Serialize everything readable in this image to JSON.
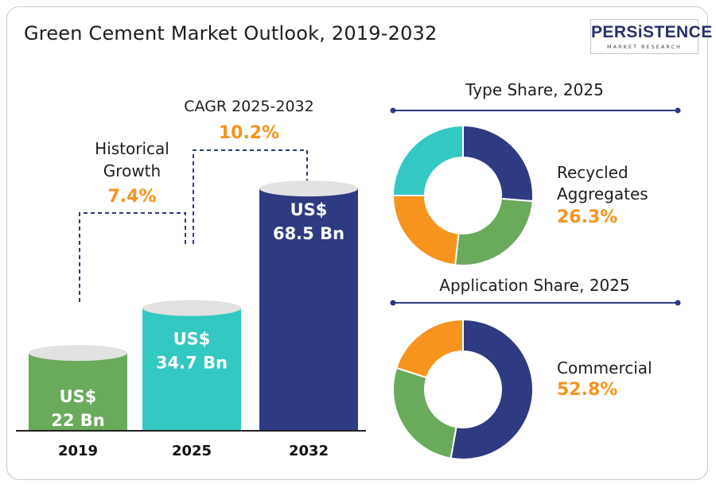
{
  "title": "Green Cement Market Outlook, 2019-2032",
  "logo": {
    "name": "PERSiSTENCE",
    "sub": "MARKET RESEARCH"
  },
  "colors": {
    "green": "#6aaa5b",
    "teal": "#34c8c2",
    "navy": "#2e3a82",
    "orange": "#f7941d",
    "annotation_line": "#2e3a82"
  },
  "annotations": {
    "historical_label_1": "Historical",
    "historical_label_2": "Growth",
    "historical_value": "7.4%",
    "cagr_label": "CAGR 2025-2032",
    "cagr_value": "10.2%"
  },
  "chart_data": [
    {
      "type": "bar",
      "title": "Green Cement Market Outlook, 2019-2032",
      "categories": [
        "2019",
        "2025",
        "2032"
      ],
      "values": [
        22,
        34.7,
        68.5
      ],
      "unit": "US$ Bn",
      "bar_labels": [
        [
          "US$",
          "22 Bn"
        ],
        [
          "US$",
          "34.7 Bn"
        ],
        [
          "US$",
          "68.5 Bn"
        ]
      ],
      "colors": [
        "#6aaa5b",
        "#34c8c2",
        "#2e3a82"
      ]
    },
    {
      "type": "pie",
      "title": "Type Share, 2025",
      "slices": [
        {
          "value": 26.3,
          "color": "#2e3a82"
        },
        {
          "value": 25.5,
          "color": "#6aaa5b"
        },
        {
          "value": 23.2,
          "color": "#f7941d"
        },
        {
          "value": 25.0,
          "color": "#34c8c2"
        }
      ],
      "highlight_label": "Recycled Aggregates",
      "highlight_label_lines": [
        "Recycled",
        "Aggregates"
      ],
      "highlight_value": "26.3%"
    },
    {
      "type": "pie",
      "title": "Application Share, 2025",
      "slices": [
        {
          "value": 52.8,
          "color": "#2e3a82"
        },
        {
          "value": 27.2,
          "color": "#6aaa5b"
        },
        {
          "value": 20.0,
          "color": "#f7941d"
        }
      ],
      "highlight_label": "Commercial",
      "highlight_value": "52.8%"
    }
  ]
}
